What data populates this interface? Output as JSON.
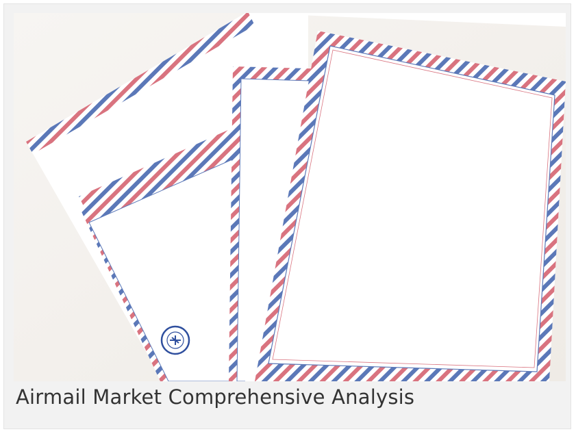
{
  "card": {
    "caption": "Airmail Market Comprehensive Analysis",
    "image_subject": "airmail-stationery-photo"
  },
  "colors": {
    "card_background": "#f2f2f2",
    "caption_text": "#333333",
    "stripe_red": "#d9737f",
    "stripe_blue": "#5b78b8",
    "paper": "#ffffff",
    "photo_background": "#f5f2ee"
  }
}
